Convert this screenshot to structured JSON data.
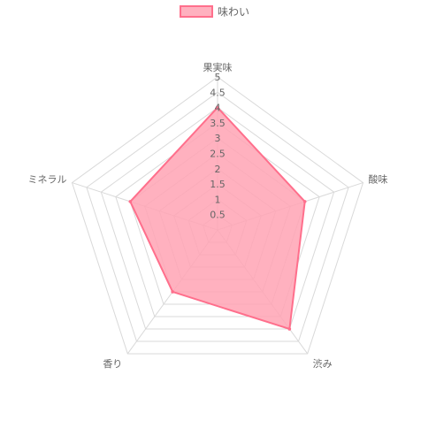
{
  "chart_data": {
    "type": "radar",
    "labels": [
      "果実味",
      "酸味",
      "渋み",
      "香り",
      "ミネラル"
    ],
    "series": [
      {
        "name": "味わい",
        "values": [
          4,
          3,
          4,
          2.5,
          3
        ]
      }
    ],
    "r_range": [
      0,
      5
    ],
    "ticks": [
      "0.5",
      "1",
      "1.5",
      "2",
      "2.5",
      "3",
      "3.5",
      "4",
      "4.5",
      "5"
    ],
    "grid": true,
    "legend_position": "top",
    "colors": {
      "fill": "#ffa3b4",
      "fill_opacity": 0.85,
      "line": "#ff6f8c",
      "grid": "#d9d9d9",
      "text": "#666666"
    }
  }
}
